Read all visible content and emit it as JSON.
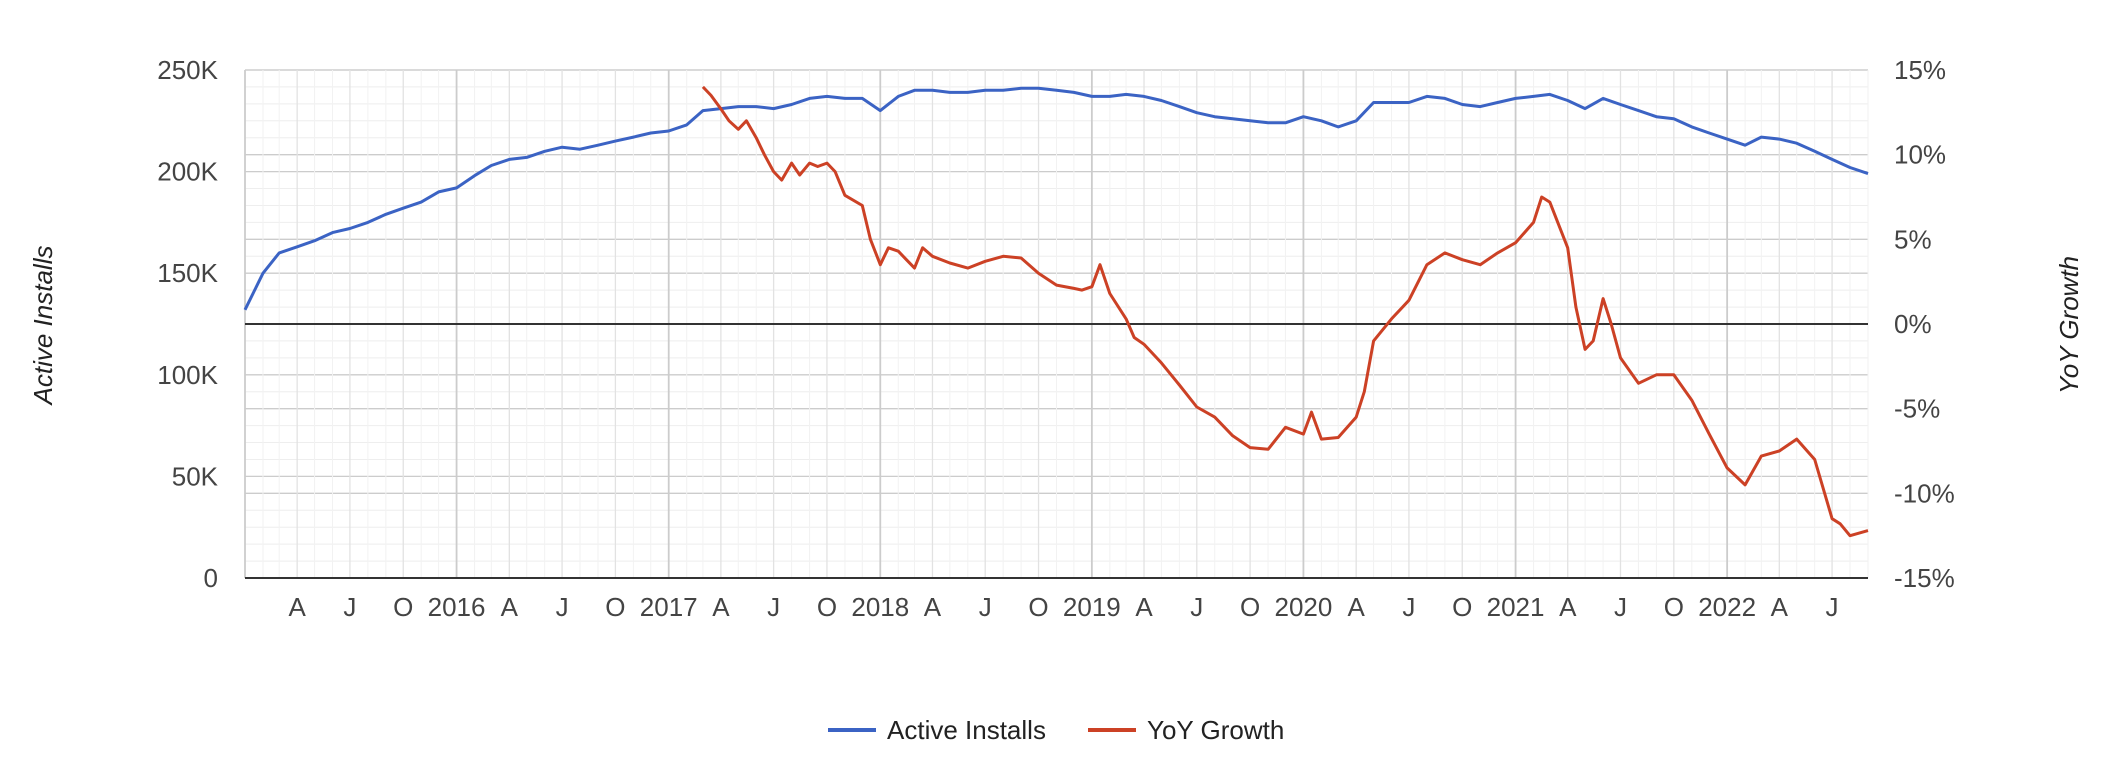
{
  "chart_data": {
    "type": "line",
    "title": "",
    "x_tick_labels": [
      "A",
      "J",
      "O",
      "2016",
      "A",
      "J",
      "O",
      "2017",
      "A",
      "J",
      "O",
      "2018",
      "A",
      "J",
      "O",
      "2019",
      "A",
      "J",
      "O",
      "2020",
      "A",
      "J",
      "O",
      "2021",
      "A",
      "J",
      "O",
      "2022",
      "A",
      "J"
    ],
    "x_range": [
      "2015-01-01",
      "2022-09-01"
    ],
    "y_left": {
      "label": "Active Installs",
      "ticks": [
        "0",
        "50K",
        "100K",
        "150K",
        "200K",
        "250K"
      ],
      "range": [
        0,
        250000
      ]
    },
    "y_right": {
      "label": "YoY Growth",
      "ticks": [
        "-15%",
        "-10%",
        "-5%",
        "0%",
        "5%",
        "10%",
        "15%"
      ],
      "range": [
        -15,
        15
      ]
    },
    "grid": true,
    "legend_position": "bottom",
    "series": [
      {
        "name": "Active Installs",
        "color": "#3b63c4",
        "axis": "left",
        "points": [
          [
            "2015-01-01",
            132000
          ],
          [
            "2015-02-01",
            150000
          ],
          [
            "2015-03-01",
            160000
          ],
          [
            "2015-04-01",
            163000
          ],
          [
            "2015-05-01",
            166000
          ],
          [
            "2015-06-01",
            170000
          ],
          [
            "2015-07-01",
            172000
          ],
          [
            "2015-08-01",
            175000
          ],
          [
            "2015-09-01",
            179000
          ],
          [
            "2015-10-01",
            182000
          ],
          [
            "2015-11-01",
            185000
          ],
          [
            "2015-12-01",
            190000
          ],
          [
            "2016-01-01",
            192000
          ],
          [
            "2016-02-01",
            198000
          ],
          [
            "2016-03-01",
            203000
          ],
          [
            "2016-04-01",
            206000
          ],
          [
            "2016-05-01",
            207000
          ],
          [
            "2016-06-01",
            210000
          ],
          [
            "2016-07-01",
            212000
          ],
          [
            "2016-08-01",
            211000
          ],
          [
            "2016-09-01",
            213000
          ],
          [
            "2016-10-01",
            215000
          ],
          [
            "2016-11-01",
            217000
          ],
          [
            "2016-12-01",
            219000
          ],
          [
            "2017-01-01",
            220000
          ],
          [
            "2017-02-01",
            223000
          ],
          [
            "2017-03-01",
            230000
          ],
          [
            "2017-04-01",
            231000
          ],
          [
            "2017-05-01",
            232000
          ],
          [
            "2017-06-01",
            232000
          ],
          [
            "2017-07-01",
            231000
          ],
          [
            "2017-08-01",
            233000
          ],
          [
            "2017-09-01",
            236000
          ],
          [
            "2017-10-01",
            237000
          ],
          [
            "2017-11-01",
            236000
          ],
          [
            "2017-12-01",
            236000
          ],
          [
            "2018-01-01",
            230000
          ],
          [
            "2018-02-01",
            237000
          ],
          [
            "2018-03-01",
            240000
          ],
          [
            "2018-04-01",
            240000
          ],
          [
            "2018-05-01",
            239000
          ],
          [
            "2018-06-01",
            239000
          ],
          [
            "2018-07-01",
            240000
          ],
          [
            "2018-08-01",
            240000
          ],
          [
            "2018-09-01",
            241000
          ],
          [
            "2018-10-01",
            241000
          ],
          [
            "2018-11-01",
            240000
          ],
          [
            "2018-12-01",
            239000
          ],
          [
            "2019-01-01",
            237000
          ],
          [
            "2019-02-01",
            237000
          ],
          [
            "2019-03-01",
            238000
          ],
          [
            "2019-04-01",
            237000
          ],
          [
            "2019-05-01",
            235000
          ],
          [
            "2019-06-01",
            232000
          ],
          [
            "2019-07-01",
            229000
          ],
          [
            "2019-08-01",
            227000
          ],
          [
            "2019-09-01",
            226000
          ],
          [
            "2019-10-01",
            225000
          ],
          [
            "2019-11-01",
            224000
          ],
          [
            "2019-12-01",
            224000
          ],
          [
            "2020-01-01",
            227000
          ],
          [
            "2020-02-01",
            225000
          ],
          [
            "2020-03-01",
            222000
          ],
          [
            "2020-04-01",
            225000
          ],
          [
            "2020-05-01",
            234000
          ],
          [
            "2020-06-01",
            234000
          ],
          [
            "2020-07-01",
            234000
          ],
          [
            "2020-08-01",
            237000
          ],
          [
            "2020-09-01",
            236000
          ],
          [
            "2020-10-01",
            233000
          ],
          [
            "2020-11-01",
            232000
          ],
          [
            "2020-12-01",
            234000
          ],
          [
            "2021-01-01",
            236000
          ],
          [
            "2021-02-01",
            237000
          ],
          [
            "2021-03-01",
            238000
          ],
          [
            "2021-04-01",
            235000
          ],
          [
            "2021-05-01",
            231000
          ],
          [
            "2021-06-01",
            236000
          ],
          [
            "2021-07-01",
            233000
          ],
          [
            "2021-08-01",
            230000
          ],
          [
            "2021-09-01",
            227000
          ],
          [
            "2021-10-01",
            226000
          ],
          [
            "2021-11-01",
            222000
          ],
          [
            "2021-12-01",
            219000
          ],
          [
            "2022-01-01",
            216000
          ],
          [
            "2022-02-01",
            213000
          ],
          [
            "2022-03-01",
            217000
          ],
          [
            "2022-04-01",
            216000
          ],
          [
            "2022-05-01",
            214000
          ],
          [
            "2022-06-01",
            210000
          ],
          [
            "2022-07-01",
            206000
          ],
          [
            "2022-08-01",
            202000
          ],
          [
            "2022-09-01",
            199000
          ]
        ]
      },
      {
        "name": "YoY Growth",
        "color": "#cc4125",
        "axis": "right",
        "points": [
          [
            "2017-03-01",
            14
          ],
          [
            "2017-03-15",
            13.5
          ],
          [
            "2017-04-01",
            12.7
          ],
          [
            "2017-04-15",
            12
          ],
          [
            "2017-05-01",
            11.5
          ],
          [
            "2017-05-15",
            12
          ],
          [
            "2017-06-01",
            11
          ],
          [
            "2017-06-15",
            10
          ],
          [
            "2017-07-01",
            9
          ],
          [
            "2017-07-15",
            8.5
          ],
          [
            "2017-08-01",
            9.5
          ],
          [
            "2017-08-15",
            8.8
          ],
          [
            "2017-09-01",
            9.5
          ],
          [
            "2017-09-15",
            9.3
          ],
          [
            "2017-10-01",
            9.5
          ],
          [
            "2017-10-15",
            9
          ],
          [
            "2017-11-01",
            7.6
          ],
          [
            "2017-12-01",
            7
          ],
          [
            "2017-12-15",
            5
          ],
          [
            "2018-01-01",
            3.5
          ],
          [
            "2018-01-15",
            4.5
          ],
          [
            "2018-02-01",
            4.3
          ],
          [
            "2018-02-15",
            3.8
          ],
          [
            "2018-03-01",
            3.3
          ],
          [
            "2018-03-15",
            4.5
          ],
          [
            "2018-04-01",
            4
          ],
          [
            "2018-05-01",
            3.6
          ],
          [
            "2018-06-01",
            3.3
          ],
          [
            "2018-07-01",
            3.7
          ],
          [
            "2018-08-01",
            4
          ],
          [
            "2018-09-01",
            3.9
          ],
          [
            "2018-10-01",
            3
          ],
          [
            "2018-11-01",
            2.3
          ],
          [
            "2018-12-01",
            2.1
          ],
          [
            "2018-12-15",
            2
          ],
          [
            "2019-01-01",
            2.2
          ],
          [
            "2019-01-15",
            3.5
          ],
          [
            "2019-02-01",
            1.8
          ],
          [
            "2019-03-01",
            0.3
          ],
          [
            "2019-03-15",
            -0.8
          ],
          [
            "2019-04-01",
            -1.2
          ],
          [
            "2019-05-01",
            -2.3
          ],
          [
            "2019-06-01",
            -3.6
          ],
          [
            "2019-07-01",
            -4.9
          ],
          [
            "2019-08-01",
            -5.5
          ],
          [
            "2019-09-01",
            -6.6
          ],
          [
            "2019-10-01",
            -7.3
          ],
          [
            "2019-11-01",
            -7.4
          ],
          [
            "2019-12-01",
            -6.1
          ],
          [
            "2020-01-01",
            -6.5
          ],
          [
            "2020-01-15",
            -5.2
          ],
          [
            "2020-02-01",
            -6.8
          ],
          [
            "2020-03-01",
            -6.7
          ],
          [
            "2020-04-01",
            -5.5
          ],
          [
            "2020-04-15",
            -4
          ],
          [
            "2020-05-01",
            -1
          ],
          [
            "2020-06-01",
            0.3
          ],
          [
            "2020-07-01",
            1.4
          ],
          [
            "2020-08-01",
            3.5
          ],
          [
            "2020-09-01",
            4.2
          ],
          [
            "2020-10-01",
            3.8
          ],
          [
            "2020-11-01",
            3.5
          ],
          [
            "2020-12-01",
            4.2
          ],
          [
            "2021-01-01",
            4.8
          ],
          [
            "2021-02-01",
            6
          ],
          [
            "2021-02-15",
            7.5
          ],
          [
            "2021-03-01",
            7.2
          ],
          [
            "2021-04-01",
            4.5
          ],
          [
            "2021-04-15",
            1
          ],
          [
            "2021-05-01",
            -1.5
          ],
          [
            "2021-05-15",
            -1
          ],
          [
            "2021-06-01",
            1.5
          ],
          [
            "2021-06-15",
            0
          ],
          [
            "2021-07-01",
            -2
          ],
          [
            "2021-08-01",
            -3.5
          ],
          [
            "2021-09-01",
            -3
          ],
          [
            "2021-10-01",
            -3
          ],
          [
            "2021-11-01",
            -4.5
          ],
          [
            "2021-12-01",
            -6.5
          ],
          [
            "2022-01-01",
            -8.5
          ],
          [
            "2022-02-01",
            -9.5
          ],
          [
            "2022-03-01",
            -7.8
          ],
          [
            "2022-04-01",
            -7.5
          ],
          [
            "2022-05-01",
            -6.8
          ],
          [
            "2022-06-01",
            -8
          ],
          [
            "2022-07-01",
            -11.5
          ],
          [
            "2022-07-15",
            -11.8
          ],
          [
            "2022-08-01",
            -12.5
          ],
          [
            "2022-09-01",
            -12.2
          ]
        ]
      }
    ]
  }
}
